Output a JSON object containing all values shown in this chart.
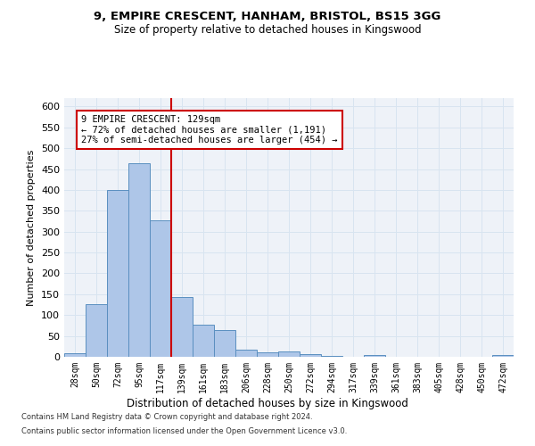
{
  "title1": "9, EMPIRE CRESCENT, HANHAM, BRISTOL, BS15 3GG",
  "title2": "Size of property relative to detached houses in Kingswood",
  "xlabel": "Distribution of detached houses by size in Kingswood",
  "ylabel": "Number of detached properties",
  "footnote1": "Contains HM Land Registry data © Crown copyright and database right 2024.",
  "footnote2": "Contains public sector information licensed under the Open Government Licence v3.0.",
  "categories": [
    "28sqm",
    "50sqm",
    "72sqm",
    "95sqm",
    "117sqm",
    "139sqm",
    "161sqm",
    "183sqm",
    "206sqm",
    "228sqm",
    "250sqm",
    "272sqm",
    "294sqm",
    "317sqm",
    "339sqm",
    "361sqm",
    "383sqm",
    "405sqm",
    "428sqm",
    "450sqm",
    "472sqm"
  ],
  "values": [
    8,
    127,
    400,
    463,
    328,
    143,
    78,
    64,
    18,
    11,
    13,
    6,
    3,
    0,
    4,
    0,
    0,
    0,
    0,
    0,
    4
  ],
  "bar_color": "#aec6e8",
  "bar_edge_color": "#5a8fc0",
  "grid_color": "#d8e4f0",
  "background_color": "#eef2f8",
  "vline_x": 4.5,
  "vline_color": "#cc0000",
  "annotation_line1": "9 EMPIRE CRESCENT: 129sqm",
  "annotation_line2": "← 72% of detached houses are smaller (1,191)",
  "annotation_line3": "27% of semi-detached houses are larger (454) →",
  "annotation_box_color": "#cc0000",
  "ylim": [
    0,
    620
  ],
  "yticks": [
    0,
    50,
    100,
    150,
    200,
    250,
    300,
    350,
    400,
    450,
    500,
    550,
    600
  ]
}
